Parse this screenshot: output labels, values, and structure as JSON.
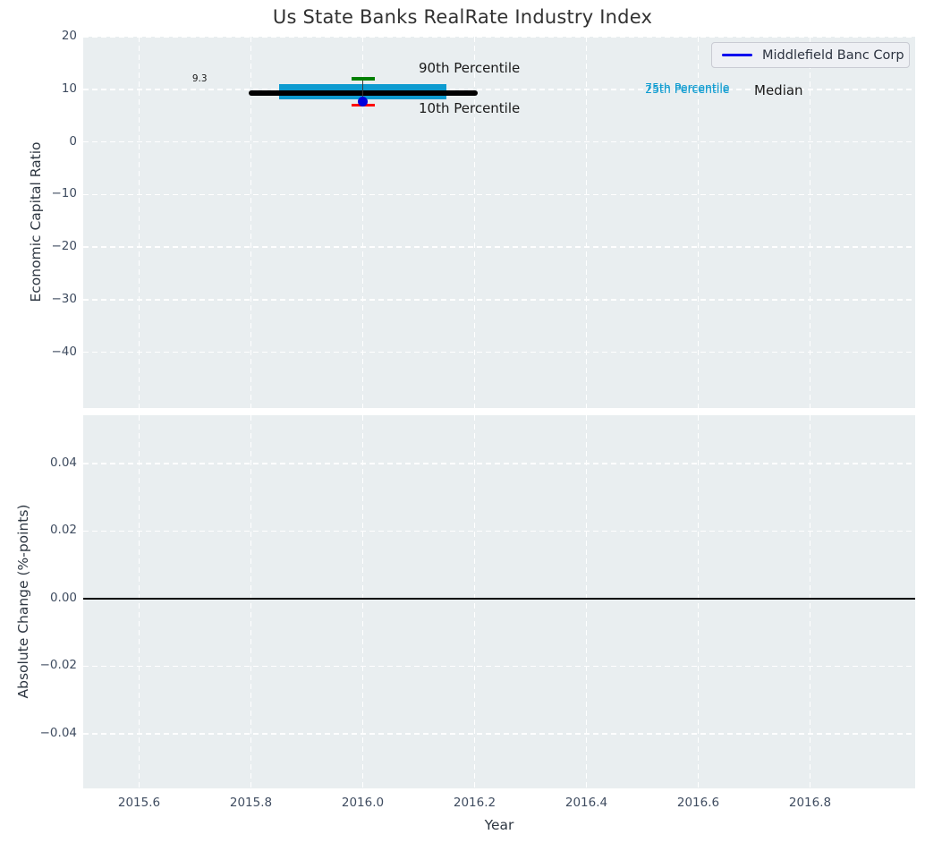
{
  "title": "Us State Banks RealRate Industry Index",
  "legend": {
    "label": "Middlefield Banc Corp",
    "line_color": "#0000ee"
  },
  "axes": {
    "top": {
      "ylabel": "Economic Capital Ratio"
    },
    "bottom": {
      "ylabel": "Absolute Change (%-points)",
      "xlabel": "Year"
    }
  },
  "colors": {
    "plot_bg": "#e9eef0",
    "grid": "#ffffff",
    "tick_label": "#3f4c60",
    "axis_label": "#2e3742",
    "title": "#323232"
  },
  "chart_data": [
    {
      "type": "box",
      "title": "Us State Banks RealRate Industry Index",
      "ylabel": "Economic Capital Ratio",
      "xlabel": "Year",
      "xlim": [
        2015.5,
        2016.988
      ],
      "ylim": [
        -50.6,
        20.0
      ],
      "grid": "white-dashed",
      "legend_position": "upper right",
      "yticks": [
        20,
        10,
        0,
        -10,
        -20,
        -30,
        -40
      ],
      "ytick_labels": [
        "20",
        "10",
        "0",
        "−10",
        "−20",
        "−30",
        "−40"
      ],
      "xticks": [
        2015.6,
        2015.8,
        2016.0,
        2016.2,
        2016.4,
        2016.6,
        2016.8
      ],
      "xtick_labels": [
        "2015.6",
        "2015.8",
        "2016.0",
        "2016.2",
        "2016.4",
        "2016.6",
        "2016.8"
      ],
      "median": {
        "value": 9.3,
        "x_start": 2015.8,
        "x_end": 2016.2,
        "color": "#000000"
      },
      "iqr_band": {
        "p25": 8.1,
        "p75": 11.0,
        "x_start": 2015.85,
        "x_end": 2016.15,
        "color": "#0d9bd0"
      },
      "whisker": {
        "x": 2016.0,
        "p10": 7.0,
        "p90": 12.0,
        "p90_cap_color": "#008000",
        "p10_cap_color": "#ff0000",
        "line_color": "#3a3a3a"
      },
      "company_point": {
        "name": "Middlefield Banc Corp",
        "x": 2016.0,
        "value": 7.75,
        "color": "#0000dd"
      },
      "annotations": [
        {
          "id": "median-value",
          "text": "9.3",
          "x": 2015.695,
          "y": 11.8,
          "color": "#1a1a1a",
          "size": 10.5
        },
        {
          "id": "p90-label",
          "text": "90th Percentile",
          "x": 2016.1,
          "y": 13.7,
          "color": "#1a1a1a",
          "size": 15
        },
        {
          "id": "p10-label",
          "text": "10th Percentile",
          "x": 2016.1,
          "y": 6.0,
          "color": "#1a1a1a",
          "size": 15
        },
        {
          "id": "p75-label",
          "text": "75th Percentile",
          "x": 2016.505,
          "y": 10.1,
          "color": "#0d9bd0",
          "size": 12.5
        },
        {
          "id": "p25-label",
          "text": "25th Percentile",
          "x": 2016.505,
          "y": 9.75,
          "color": "#0d9bd0",
          "size": 12.5
        },
        {
          "id": "median-label",
          "text": "Median",
          "x": 2016.7,
          "y": 9.5,
          "color": "#1a1a1a",
          "size": 15
        }
      ]
    },
    {
      "type": "line",
      "ylabel": "Absolute Change (%-points)",
      "xlabel": "Year",
      "xlim": [
        2015.5,
        2016.988
      ],
      "ylim": [
        -0.0562,
        0.0543
      ],
      "grid": "white-dashed",
      "yticks": [
        0.04,
        0.02,
        0.0,
        -0.02,
        -0.04
      ],
      "ytick_labels": [
        "0.04",
        "0.02",
        "0.00",
        "−0.02",
        "−0.04"
      ],
      "xticks": [
        2015.6,
        2015.8,
        2016.0,
        2016.2,
        2016.4,
        2016.6,
        2016.8
      ],
      "xtick_labels": [
        "2015.6",
        "2015.8",
        "2016.0",
        "2016.2",
        "2016.4",
        "2016.6",
        "2016.8"
      ],
      "zero_line": {
        "y": 0.0,
        "color": "#000000"
      },
      "series": []
    }
  ]
}
